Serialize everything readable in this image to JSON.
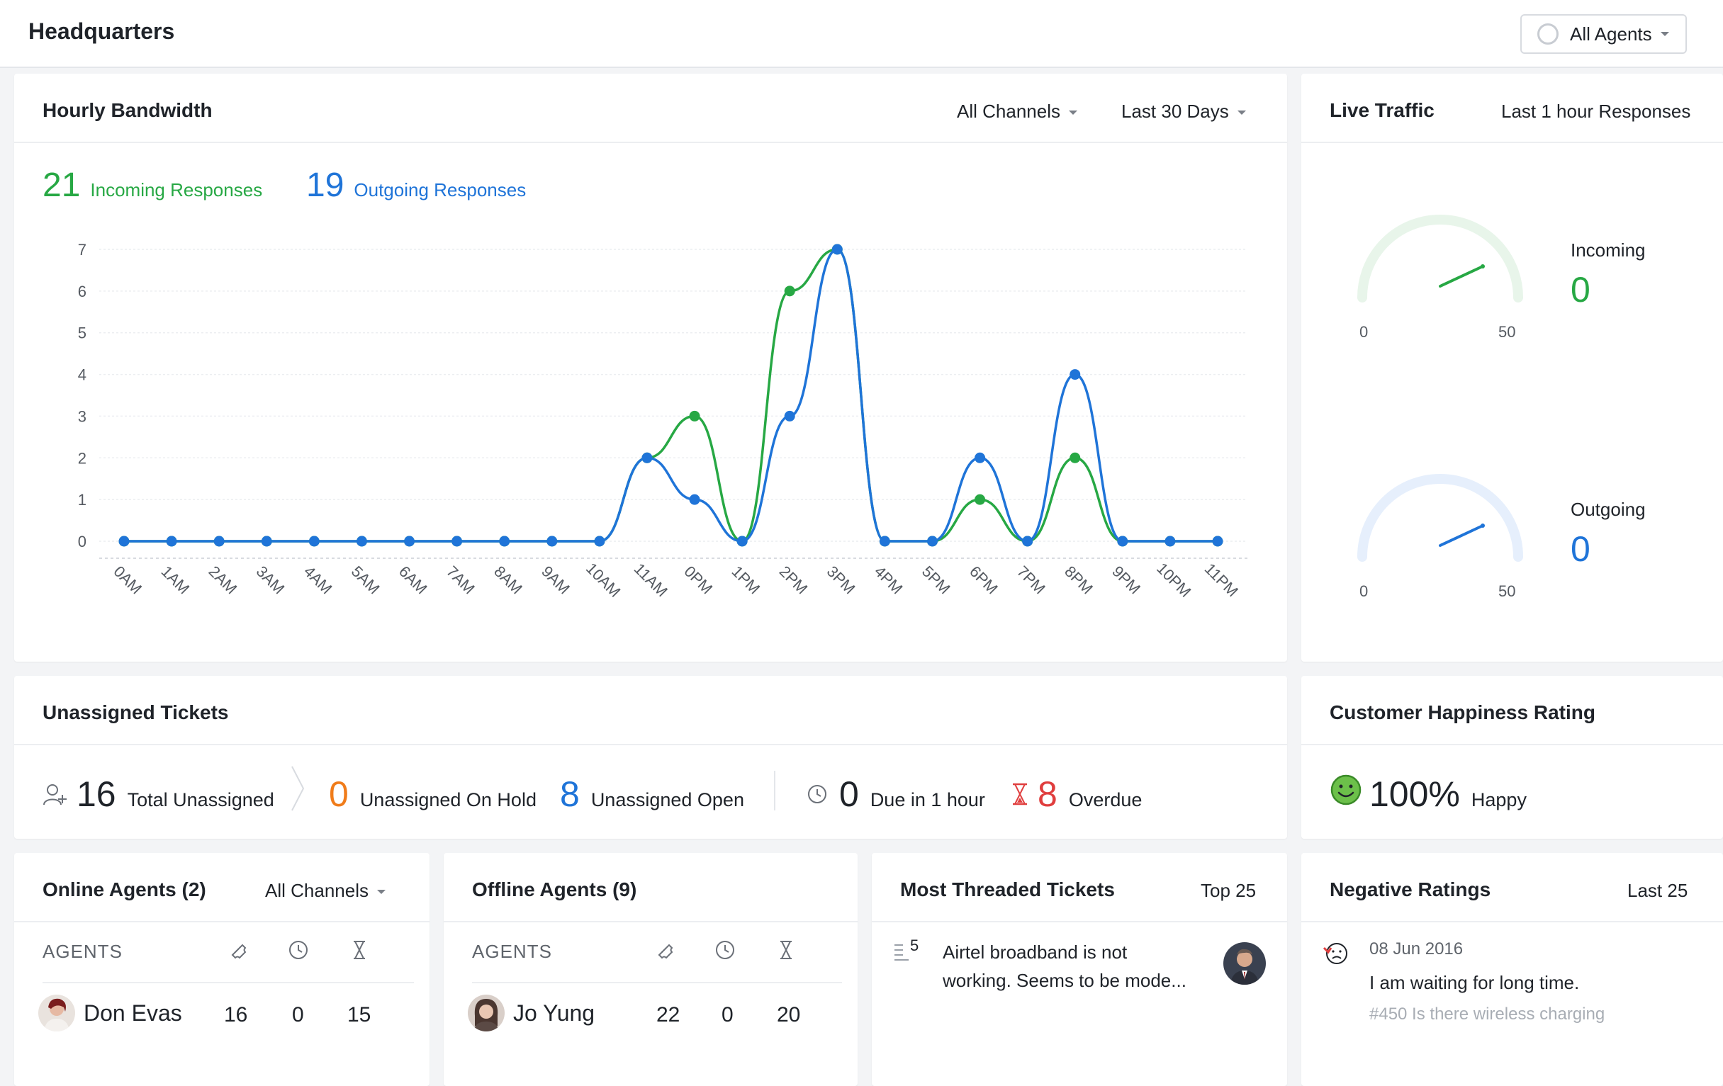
{
  "header": {
    "title": "Headquarters",
    "agent_filter": "All Agents"
  },
  "bandwidth": {
    "title": "Hourly Bandwidth",
    "channel_filter": "All Channels",
    "range_filter": "Last 30 Days",
    "incoming_count": "21",
    "incoming_label": "Incoming Responses",
    "outgoing_count": "19",
    "outgoing_label": "Outgoing Responses"
  },
  "chart_data": {
    "type": "line",
    "categories": [
      "0AM",
      "1AM",
      "2AM",
      "3AM",
      "4AM",
      "5AM",
      "6AM",
      "7AM",
      "8AM",
      "9AM",
      "10AM",
      "11AM",
      "0PM",
      "1PM",
      "2PM",
      "3PM",
      "4PM",
      "5PM",
      "6PM",
      "7PM",
      "8PM",
      "9PM",
      "10PM",
      "11PM"
    ],
    "series": [
      {
        "name": "Incoming Responses",
        "color": "#27a844",
        "values": [
          0,
          0,
          0,
          0,
          0,
          0,
          0,
          0,
          0,
          0,
          0,
          2,
          3,
          0,
          6,
          7,
          0,
          0,
          1,
          0,
          2,
          0,
          0,
          0
        ]
      },
      {
        "name": "Outgoing Responses",
        "color": "#1f74d8",
        "values": [
          0,
          0,
          0,
          0,
          0,
          0,
          0,
          0,
          0,
          0,
          0,
          2,
          1,
          0,
          3,
          7,
          0,
          0,
          2,
          0,
          4,
          0,
          0,
          0
        ]
      }
    ],
    "yticks": [
      0,
      1,
      2,
      3,
      4,
      5,
      6,
      7
    ],
    "ylim": [
      0,
      7
    ],
    "grid": true
  },
  "live_traffic": {
    "title": "Live Traffic",
    "range": "Last 1 hour Responses",
    "incoming": {
      "label": "Incoming",
      "value": "0",
      "min": "0",
      "max": "50",
      "color": "#27a844"
    },
    "outgoing": {
      "label": "Outgoing",
      "value": "0",
      "min": "0",
      "max": "50",
      "color": "#1f74d8"
    }
  },
  "unassigned": {
    "title": "Unassigned Tickets",
    "total": {
      "value": "16",
      "label": "Total Unassigned"
    },
    "on_hold": {
      "value": "0",
      "label": "Unassigned On Hold",
      "color": "#f07c1a"
    },
    "open": {
      "value": "8",
      "label": "Unassigned Open",
      "color": "#1f74d8"
    },
    "due": {
      "value": "0",
      "label": "Due in 1 hour"
    },
    "overdue": {
      "value": "8",
      "label": "Overdue",
      "color": "#e03e3e"
    }
  },
  "happiness": {
    "title": "Customer Happiness Rating",
    "value": "100%",
    "label": "Happy"
  },
  "online_agents": {
    "title": "Online Agents (2)",
    "filter": "All Channels",
    "col_header": "AGENTS",
    "rows": [
      {
        "name": "Don Evas",
        "tickets": "16",
        "due": "0",
        "overdue": "15"
      }
    ]
  },
  "offline_agents": {
    "title": "Offline Agents (9)",
    "col_header": "AGENTS",
    "rows": [
      {
        "name": "Jo Yung",
        "tickets": "22",
        "due": "0",
        "overdue": "20"
      }
    ]
  },
  "threaded": {
    "title": "Most Threaded Tickets",
    "range": "Top 25",
    "items": [
      {
        "count": "5",
        "line1": "Airtel broadband is not",
        "line2": "working. Seems to be mode..."
      }
    ]
  },
  "negative": {
    "title": "Negative Ratings",
    "range": "Last 25",
    "items": [
      {
        "date": "08 Jun 2016",
        "message": "I am waiting for long time.",
        "ticket": "#450 Is there wireless charging"
      }
    ]
  }
}
